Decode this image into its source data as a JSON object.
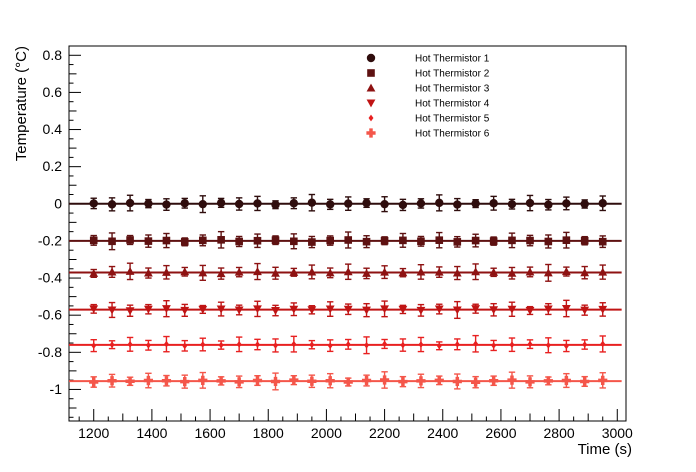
{
  "chart_data": {
    "type": "scatter",
    "title": "",
    "xlabel": "Time (s)",
    "ylabel": "Temperature (°C)",
    "xlim": [
      1115,
      3030
    ],
    "ylim": [
      -1.17,
      0.85
    ],
    "grid": false,
    "legend_position": "top-center-right",
    "background_color": "#ffffff",
    "axis_color": "#000000",
    "x_major_ticks": [
      1200,
      1400,
      1600,
      1800,
      2000,
      2200,
      2400,
      2600,
      2800,
      3000
    ],
    "x_tick_labels": [
      "1200",
      "1400",
      "1600",
      "1800",
      "2000",
      "2200",
      "2400",
      "2600",
      "2800",
      "3000"
    ],
    "x_minor_step": 50,
    "y_major_ticks": [
      0.8,
      0.6,
      0.4,
      0.2,
      0,
      -0.2,
      -0.4,
      -0.6,
      -0.8,
      -1
    ],
    "y_tick_labels": [
      "0.8",
      "0.6",
      "0.4",
      "0.2",
      "0",
      "-0.2",
      "-0.4",
      "-0.6",
      "-0.8",
      "-1"
    ],
    "y_minor_step": 0.05,
    "fit_line_span": [
      1115,
      3015
    ],
    "t": [
      1200,
      1263,
      1325,
      1388,
      1450,
      1513,
      1575,
      1638,
      1700,
      1763,
      1825,
      1888,
      1950,
      2013,
      2075,
      2138,
      2200,
      2263,
      2325,
      2388,
      2450,
      2513,
      2575,
      2638,
      2700,
      2763,
      2825,
      2888,
      2950
    ],
    "series": [
      {
        "name": "Hot Thermistor 1",
        "marker": "circle",
        "color": "#2f0d0d",
        "baseline": 0.0,
        "dy": [
          0.002,
          -0.003,
          0.004,
          0.001,
          -0.004,
          0.003,
          -0.002,
          0.005,
          -0.001,
          0.002,
          -0.005,
          0.003,
          0.006,
          -0.003,
          0.001,
          0.004,
          -0.002,
          -0.006,
          0.002,
          0.005,
          -0.004,
          0.001,
          0.003,
          -0.002,
          0.004,
          -0.005,
          0.002,
          -0.001,
          0.003
        ],
        "err": [
          0.028,
          0.035,
          0.042,
          0.022,
          0.031,
          0.026,
          0.045,
          0.024,
          0.033,
          0.038,
          0.021,
          0.029,
          0.044,
          0.027,
          0.036,
          0.023,
          0.04,
          0.03,
          0.025,
          0.043,
          0.032,
          0.021,
          0.037,
          0.026,
          0.041,
          0.028,
          0.034,
          0.022,
          0.039
        ]
      },
      {
        "name": "Hot Thermistor 2",
        "marker": "square",
        "color": "#5e1111",
        "baseline": -0.2,
        "dy": [
          0.003,
          -0.002,
          0.005,
          -0.001,
          0.002,
          -0.005,
          0.003,
          0.006,
          -0.003,
          0.001,
          0.004,
          -0.002,
          -0.006,
          0.002,
          0.005,
          -0.004,
          0.001,
          0.003,
          -0.002,
          0.004,
          -0.005,
          0.002,
          -0.001,
          0.003,
          0.002,
          -0.003,
          0.004,
          0.001,
          -0.004
        ],
        "err": [
          0.026,
          0.045,
          0.024,
          0.033,
          0.038,
          0.021,
          0.029,
          0.044,
          0.027,
          0.036,
          0.023,
          0.04,
          0.03,
          0.025,
          0.043,
          0.032,
          0.021,
          0.037,
          0.026,
          0.041,
          0.028,
          0.034,
          0.022,
          0.039,
          0.028,
          0.035,
          0.042,
          0.022,
          0.031
        ]
      },
      {
        "name": "Hot Thermistor 3",
        "marker": "triangle-up",
        "color": "#8e1212",
        "baseline": -0.37,
        "dy": [
          -0.005,
          0.003,
          0.006,
          -0.003,
          0.001,
          0.004,
          -0.002,
          -0.006,
          0.002,
          0.005,
          -0.004,
          0.001,
          0.003,
          -0.002,
          0.004,
          -0.005,
          0.002,
          -0.001,
          0.003,
          0.002,
          -0.003,
          0.004,
          0.001,
          -0.004,
          0.003,
          -0.002,
          0.005,
          -0.001,
          0.002
        ],
        "err": [
          0.021,
          0.029,
          0.044,
          0.027,
          0.036,
          0.023,
          0.04,
          0.03,
          0.025,
          0.043,
          0.032,
          0.021,
          0.037,
          0.026,
          0.041,
          0.028,
          0.034,
          0.022,
          0.039,
          0.028,
          0.035,
          0.042,
          0.022,
          0.031,
          0.026,
          0.045,
          0.024,
          0.033,
          0.038
        ]
      },
      {
        "name": "Hot Thermistor 4",
        "marker": "triangle-down",
        "color": "#c01414",
        "baseline": -0.57,
        "dy": [
          0.004,
          -0.002,
          -0.006,
          0.002,
          0.005,
          -0.004,
          0.001,
          0.003,
          -0.002,
          0.004,
          -0.005,
          0.002,
          -0.001,
          0.003,
          0.002,
          -0.003,
          0.004,
          0.001,
          -0.004,
          0.003,
          -0.002,
          0.005,
          -0.001,
          0.002,
          -0.005,
          0.003,
          0.006,
          -0.003,
          0.001
        ],
        "err": [
          0.023,
          0.04,
          0.03,
          0.025,
          0.043,
          0.032,
          0.021,
          0.037,
          0.026,
          0.041,
          0.028,
          0.034,
          0.022,
          0.039,
          0.028,
          0.035,
          0.042,
          0.022,
          0.031,
          0.026,
          0.045,
          0.024,
          0.033,
          0.038,
          0.021,
          0.029,
          0.044,
          0.027,
          0.036
        ]
      },
      {
        "name": "Hot Thermistor 5",
        "marker": "diamond",
        "color": "#e82020",
        "baseline": -0.76,
        "dy": [
          -0.004,
          0.001,
          0.003,
          -0.002,
          0.004,
          -0.005,
          0.002,
          -0.001,
          0.003,
          0.002,
          -0.003,
          0.004,
          0.001,
          -0.004,
          0.003,
          -0.002,
          0.005,
          -0.001,
          0.002,
          -0.005,
          0.003,
          0.006,
          -0.003,
          0.001,
          0.004,
          -0.002,
          -0.006,
          0.002,
          0.005
        ],
        "err": [
          0.032,
          0.021,
          0.037,
          0.026,
          0.041,
          0.028,
          0.034,
          0.022,
          0.039,
          0.028,
          0.035,
          0.042,
          0.022,
          0.031,
          0.026,
          0.045,
          0.024,
          0.033,
          0.038,
          0.021,
          0.029,
          0.044,
          0.027,
          0.036,
          0.023,
          0.04,
          0.03,
          0.025,
          0.043
        ]
      },
      {
        "name": "Hot Thermistor 6",
        "marker": "plus",
        "color": "#f4564a",
        "baseline": -0.955,
        "dy": [
          -0.005,
          0.002,
          -0.001,
          0.003,
          0.002,
          -0.003,
          0.004,
          0.001,
          -0.004,
          0.003,
          -0.002,
          0.005,
          -0.001,
          0.002,
          -0.005,
          0.003,
          0.006,
          -0.003,
          0.001,
          0.004,
          -0.002,
          -0.006,
          0.002,
          0.005,
          -0.004,
          0.001,
          0.003,
          -0.002,
          0.004
        ],
        "err": [
          0.028,
          0.034,
          0.022,
          0.039,
          0.028,
          0.035,
          0.042,
          0.022,
          0.031,
          0.026,
          0.045,
          0.024,
          0.033,
          0.038,
          0.021,
          0.029,
          0.044,
          0.027,
          0.036,
          0.023,
          0.04,
          0.03,
          0.025,
          0.043,
          0.032,
          0.021,
          0.037,
          0.026,
          0.041
        ]
      }
    ]
  }
}
